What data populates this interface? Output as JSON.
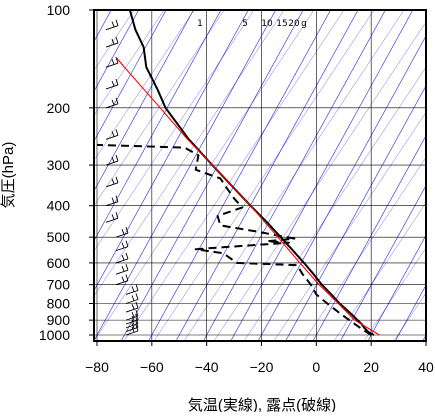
{
  "chart_data": {
    "type": "line",
    "subtype": "skew-t log-p thermodynamic diagram",
    "xlabel": "気温(実線), 露点(破線)",
    "ylabel": "気圧(hPa)",
    "x_ticks": [
      -80,
      -60,
      -40,
      -20,
      0,
      20,
      40
    ],
    "y_ticks": [
      100,
      200,
      300,
      400,
      500,
      600,
      700,
      800,
      900,
      1000
    ],
    "xlim": [
      -80,
      40
    ],
    "ylim": [
      1050,
      100
    ],
    "y_scale": "log",
    "grid": true,
    "mixing_ratio_labels": [
      "1",
      "5",
      "10",
      "15",
      "20",
      "g"
    ],
    "colors": {
      "temperature": "#000000",
      "dewpoint": "#000000",
      "parcel": "#ff0000",
      "isotherms": "#0000cc",
      "grid": "#000000",
      "wind_barbs": "#000000"
    },
    "series": [
      {
        "key": "temperature",
        "style": "solid",
        "points": [
          {
            "p": 1000,
            "t": 21
          },
          {
            "p": 980,
            "t": 19
          },
          {
            "p": 950,
            "t": 17.5
          },
          {
            "p": 925,
            "t": 16.5
          },
          {
            "p": 900,
            "t": 15
          },
          {
            "p": 850,
            "t": 12
          },
          {
            "p": 800,
            "t": 8.5
          },
          {
            "p": 750,
            "t": 5.5
          },
          {
            "p": 700,
            "t": 2
          },
          {
            "p": 650,
            "t": -1
          },
          {
            "p": 600,
            "t": -4.5
          },
          {
            "p": 550,
            "t": -8.5
          },
          {
            "p": 500,
            "t": -13
          },
          {
            "p": 450,
            "t": -18
          },
          {
            "p": 400,
            "t": -24
          },
          {
            "p": 350,
            "t": -30.5
          },
          {
            "p": 300,
            "t": -38
          },
          {
            "p": 250,
            "t": -46.5
          },
          {
            "p": 200,
            "t": -55
          },
          {
            "p": 175,
            "t": -58
          },
          {
            "p": 150,
            "t": -62
          },
          {
            "p": 130,
            "t": -63
          },
          {
            "p": 115,
            "t": -66
          },
          {
            "p": 100,
            "t": -68
          }
        ]
      },
      {
        "key": "dewpoint",
        "style": "dashed",
        "points": [
          {
            "p": 1000,
            "t": 20
          },
          {
            "p": 950,
            "t": 16
          },
          {
            "p": 900,
            "t": 12
          },
          {
            "p": 850,
            "t": 8
          },
          {
            "p": 800,
            "t": 4
          },
          {
            "p": 750,
            "t": 0
          },
          {
            "p": 700,
            "t": -2
          },
          {
            "p": 650,
            "t": -5
          },
          {
            "p": 610,
            "t": -7
          },
          {
            "p": 600,
            "t": -29
          },
          {
            "p": 560,
            "t": -34
          },
          {
            "p": 545,
            "t": -44
          },
          {
            "p": 540,
            "t": -38
          },
          {
            "p": 520,
            "t": -10
          },
          {
            "p": 515,
            "t": -18
          },
          {
            "p": 505,
            "t": -8
          },
          {
            "p": 480,
            "t": -22
          },
          {
            "p": 460,
            "t": -35
          },
          {
            "p": 430,
            "t": -36
          },
          {
            "p": 405,
            "t": -27
          },
          {
            "p": 380,
            "t": -30
          },
          {
            "p": 350,
            "t": -33
          },
          {
            "p": 330,
            "t": -35
          },
          {
            "p": 310,
            "t": -44
          },
          {
            "p": 280,
            "t": -43
          },
          {
            "p": 265,
            "t": -48
          },
          {
            "p": 260,
            "t": -80
          }
        ]
      },
      {
        "key": "parcel",
        "style": "solid",
        "points": [
          {
            "p": 1000,
            "t": 23
          },
          {
            "p": 900,
            "t": 14
          },
          {
            "p": 800,
            "t": 8
          },
          {
            "p": 700,
            "t": 1
          },
          {
            "p": 600,
            "t": -6
          },
          {
            "p": 500,
            "t": -14
          },
          {
            "p": 400,
            "t": -24
          },
          {
            "p": 300,
            "t": -38
          },
          {
            "p": 250,
            "t": -47
          },
          {
            "p": 200,
            "t": -57
          },
          {
            "p": 150,
            "t": -70
          },
          {
            "p": 140,
            "t": -73
          }
        ]
      }
    ],
    "wind_barbs": [
      {
        "p": 1000
      },
      {
        "p": 975
      },
      {
        "p": 950
      },
      {
        "p": 925
      },
      {
        "p": 900
      },
      {
        "p": 850
      },
      {
        "p": 800
      },
      {
        "p": 750
      },
      {
        "p": 700
      },
      {
        "p": 650
      },
      {
        "p": 600
      },
      {
        "p": 550
      },
      {
        "p": 500
      },
      {
        "p": 450
      },
      {
        "p": 400
      },
      {
        "p": 350
      },
      {
        "p": 300
      },
      {
        "p": 250
      },
      {
        "p": 200
      },
      {
        "p": 175
      },
      {
        "p": 150
      },
      {
        "p": 130
      },
      {
        "p": 115
      },
      {
        "p": 100
      }
    ]
  }
}
